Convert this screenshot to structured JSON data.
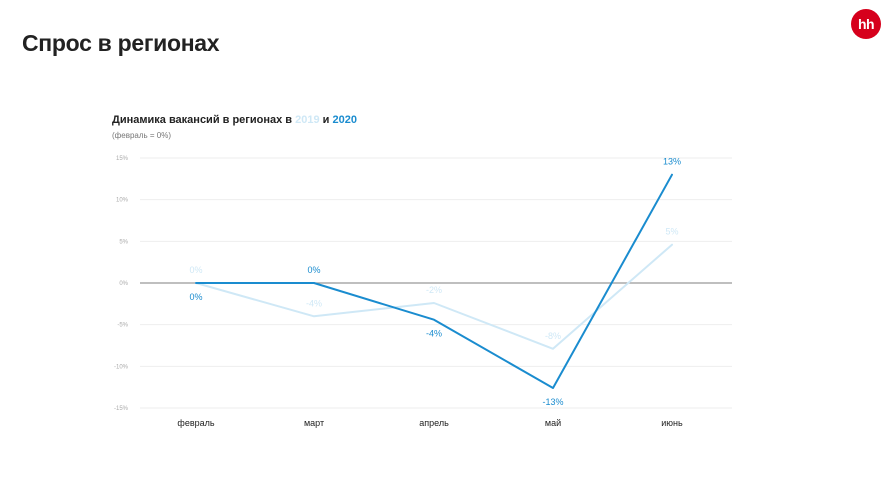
{
  "header": {
    "title": "Спрос в регионах",
    "logo_text": "hh"
  },
  "chart_data": {
    "type": "line",
    "title_prefix": "Динамика вакансий в регионах в ",
    "title_year_a": "2019",
    "title_join": " и ",
    "title_year_b": "2020",
    "subtitle": "(февраль = 0%)",
    "categories": [
      "февраль",
      "март",
      "апрель",
      "май",
      "июнь"
    ],
    "ylim": [
      -15,
      15
    ],
    "yticks": [
      15,
      10,
      5,
      0,
      -5,
      -10,
      -15
    ],
    "ytick_labels": [
      "15%",
      "10%",
      "5%",
      "0%",
      "-5%",
      "-10%",
      "-15%"
    ],
    "series": [
      {
        "name": "2019",
        "color": "#cfe8f6",
        "values": [
          0,
          -4,
          -2.4,
          -7.9,
          4.6
        ],
        "labels": [
          "0%",
          "-4%",
          "-2%",
          "-8%",
          "5%"
        ],
        "label_position": [
          "above",
          "above",
          "above",
          "above",
          "above"
        ]
      },
      {
        "name": "2020",
        "color": "#1a8ccf",
        "values": [
          0,
          0,
          -4.4,
          -12.6,
          13
        ],
        "labels": [
          "0%",
          "0%",
          "-4%",
          "-13%",
          "13%"
        ],
        "label_position": [
          "below",
          "above",
          "below",
          "below",
          "above"
        ]
      }
    ],
    "grid": true,
    "zero_line_color": "#999999",
    "grid_color": "#eeeeee"
  }
}
